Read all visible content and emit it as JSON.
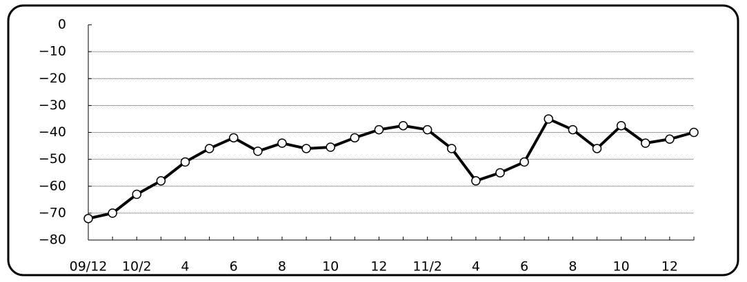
{
  "chart_data": {
    "type": "line",
    "categories": [
      "09/12",
      null,
      "10/2",
      null,
      "4",
      null,
      "6",
      null,
      "8",
      null,
      "10",
      null,
      "12",
      null,
      "11/2",
      null,
      "4",
      null,
      "6",
      null,
      "8",
      null,
      "10",
      null,
      "12",
      null
    ],
    "series": [
      {
        "color": "#000000",
        "values": [
          -72,
          -70,
          -63,
          -58,
          -51,
          -46,
          -42,
          -47,
          -44,
          -46,
          -45.5,
          -42,
          -39,
          -37.5,
          -39,
          -46,
          -58,
          -55,
          -51,
          -35,
          -39,
          -46,
          -37.5,
          -44,
          -42.5,
          -40
        ]
      }
    ],
    "ylim": [
      -80,
      0
    ],
    "yticks": [
      {
        "value": -80,
        "label": "−80"
      },
      {
        "value": -70,
        "label": "−70"
      },
      {
        "value": -60,
        "label": "−60"
      },
      {
        "value": -50,
        "label": "−50"
      },
      {
        "value": -40,
        "label": "−40"
      },
      {
        "value": -30,
        "label": "−30"
      },
      {
        "value": -20,
        "label": "−20"
      },
      {
        "value": -10,
        "label": "−10"
      },
      0
    ],
    "grid": true
  }
}
